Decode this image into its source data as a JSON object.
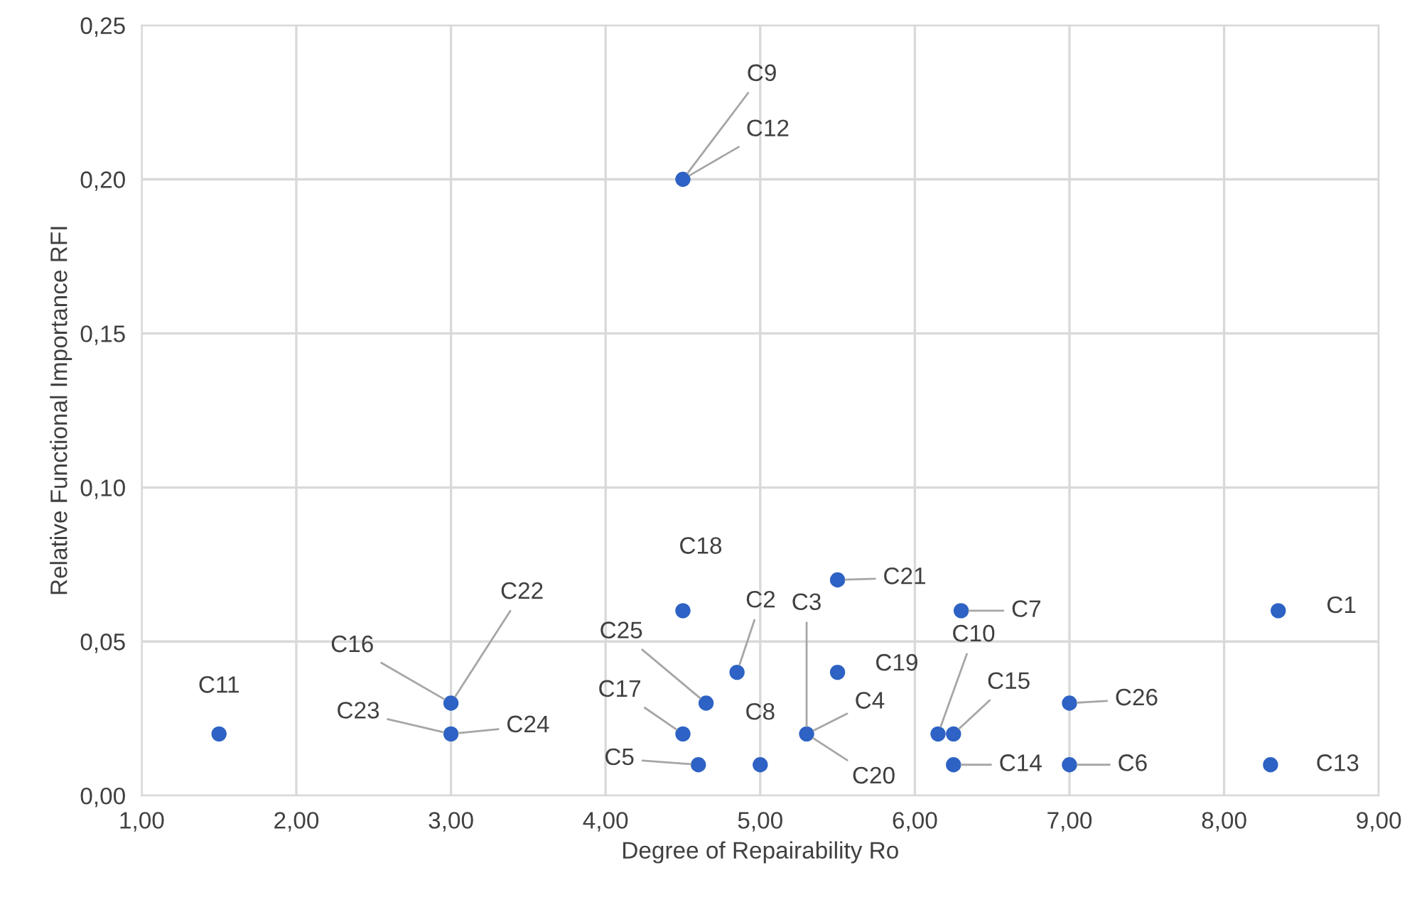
{
  "chart_data": {
    "type": "scatter",
    "xlabel": "Degree of Repairability Ro",
    "ylabel": "Relative Functional Importance RFI",
    "x": [
      1.5,
      3.0,
      3.0,
      4.5,
      4.5,
      4.5,
      4.6,
      4.65,
      4.85,
      5.0,
      5.3,
      5.5,
      5.5,
      6.3,
      6.15,
      6.25,
      6.25,
      7.0,
      7.0,
      8.3,
      8.35
    ],
    "series": [
      {
        "color": "#2e62c4",
        "values": [
          0.02,
          0.03,
          0.02,
          0.2,
          0.06,
          0.02,
          0.01,
          0.03,
          0.04,
          0.01,
          0.02,
          0.04,
          0.07,
          0.06,
          0.02,
          0.02,
          0.01,
          0.03,
          0.01,
          0.01,
          0.06
        ]
      }
    ],
    "marker": "circle",
    "grid": true,
    "xlim": [
      1,
      9
    ],
    "ylim": [
      0,
      0.25
    ],
    "xticks": [
      {
        "value": 1,
        "label": "1,00"
      },
      {
        "value": 2,
        "label": "2,00"
      },
      {
        "value": 3,
        "label": "3,00"
      },
      {
        "value": 4,
        "label": "4,00"
      },
      {
        "value": 5,
        "label": "5,00"
      },
      {
        "value": 6,
        "label": "6,00"
      },
      {
        "value": 7,
        "label": "7,00"
      },
      {
        "value": 8,
        "label": "8,00"
      },
      {
        "value": 9,
        "label": "9,00"
      }
    ],
    "yticks": [
      {
        "value": 0,
        "label": "0,00"
      },
      {
        "value": 0.05,
        "label": "0,05"
      },
      {
        "value": 0.1,
        "label": "0,10"
      },
      {
        "value": 0.15,
        "label": "0,15"
      },
      {
        "value": 0.2,
        "label": "0,20"
      },
      {
        "value": 0.25,
        "label": "0,25"
      }
    ],
    "annotations": [
      {
        "text": "C9",
        "x": 4.5,
        "y": 0.2
      },
      {
        "text": "C12",
        "x": 4.5,
        "y": 0.2
      },
      {
        "text": "C18",
        "x": 4.5,
        "y": 0.06
      },
      {
        "text": "C22",
        "x": 3.0,
        "y": 0.03
      },
      {
        "text": "C16",
        "x": 3.0,
        "y": 0.03
      },
      {
        "text": "C23",
        "x": 3.0,
        "y": 0.02
      },
      {
        "text": "C24",
        "x": 3.0,
        "y": 0.02
      },
      {
        "text": "C11",
        "x": 1.5,
        "y": 0.02
      },
      {
        "text": "C25",
        "x": 4.65,
        "y": 0.03
      },
      {
        "text": "C2",
        "x": 4.85,
        "y": 0.04
      },
      {
        "text": "C17",
        "x": 4.5,
        "y": 0.02
      },
      {
        "text": "C5",
        "x": 4.6,
        "y": 0.01
      },
      {
        "text": "C8",
        "x": 5.0,
        "y": 0.01
      },
      {
        "text": "C3",
        "x": 5.3,
        "y": 0.02
      },
      {
        "text": "C4",
        "x": 5.3,
        "y": 0.02
      },
      {
        "text": "C20",
        "x": 5.3,
        "y": 0.02
      },
      {
        "text": "C19",
        "x": 5.5,
        "y": 0.04
      },
      {
        "text": "C21",
        "x": 5.5,
        "y": 0.07
      },
      {
        "text": "C7",
        "x": 6.3,
        "y": 0.06
      },
      {
        "text": "C10",
        "x": 6.15,
        "y": 0.02
      },
      {
        "text": "C15",
        "x": 6.25,
        "y": 0.02
      },
      {
        "text": "C14",
        "x": 6.25,
        "y": 0.01
      },
      {
        "text": "C26",
        "x": 7.0,
        "y": 0.03
      },
      {
        "text": "C6",
        "x": 7.0,
        "y": 0.01
      },
      {
        "text": "C13",
        "x": 8.3,
        "y": 0.01
      },
      {
        "text": "C1",
        "x": 8.35,
        "y": 0.06
      }
    ]
  }
}
